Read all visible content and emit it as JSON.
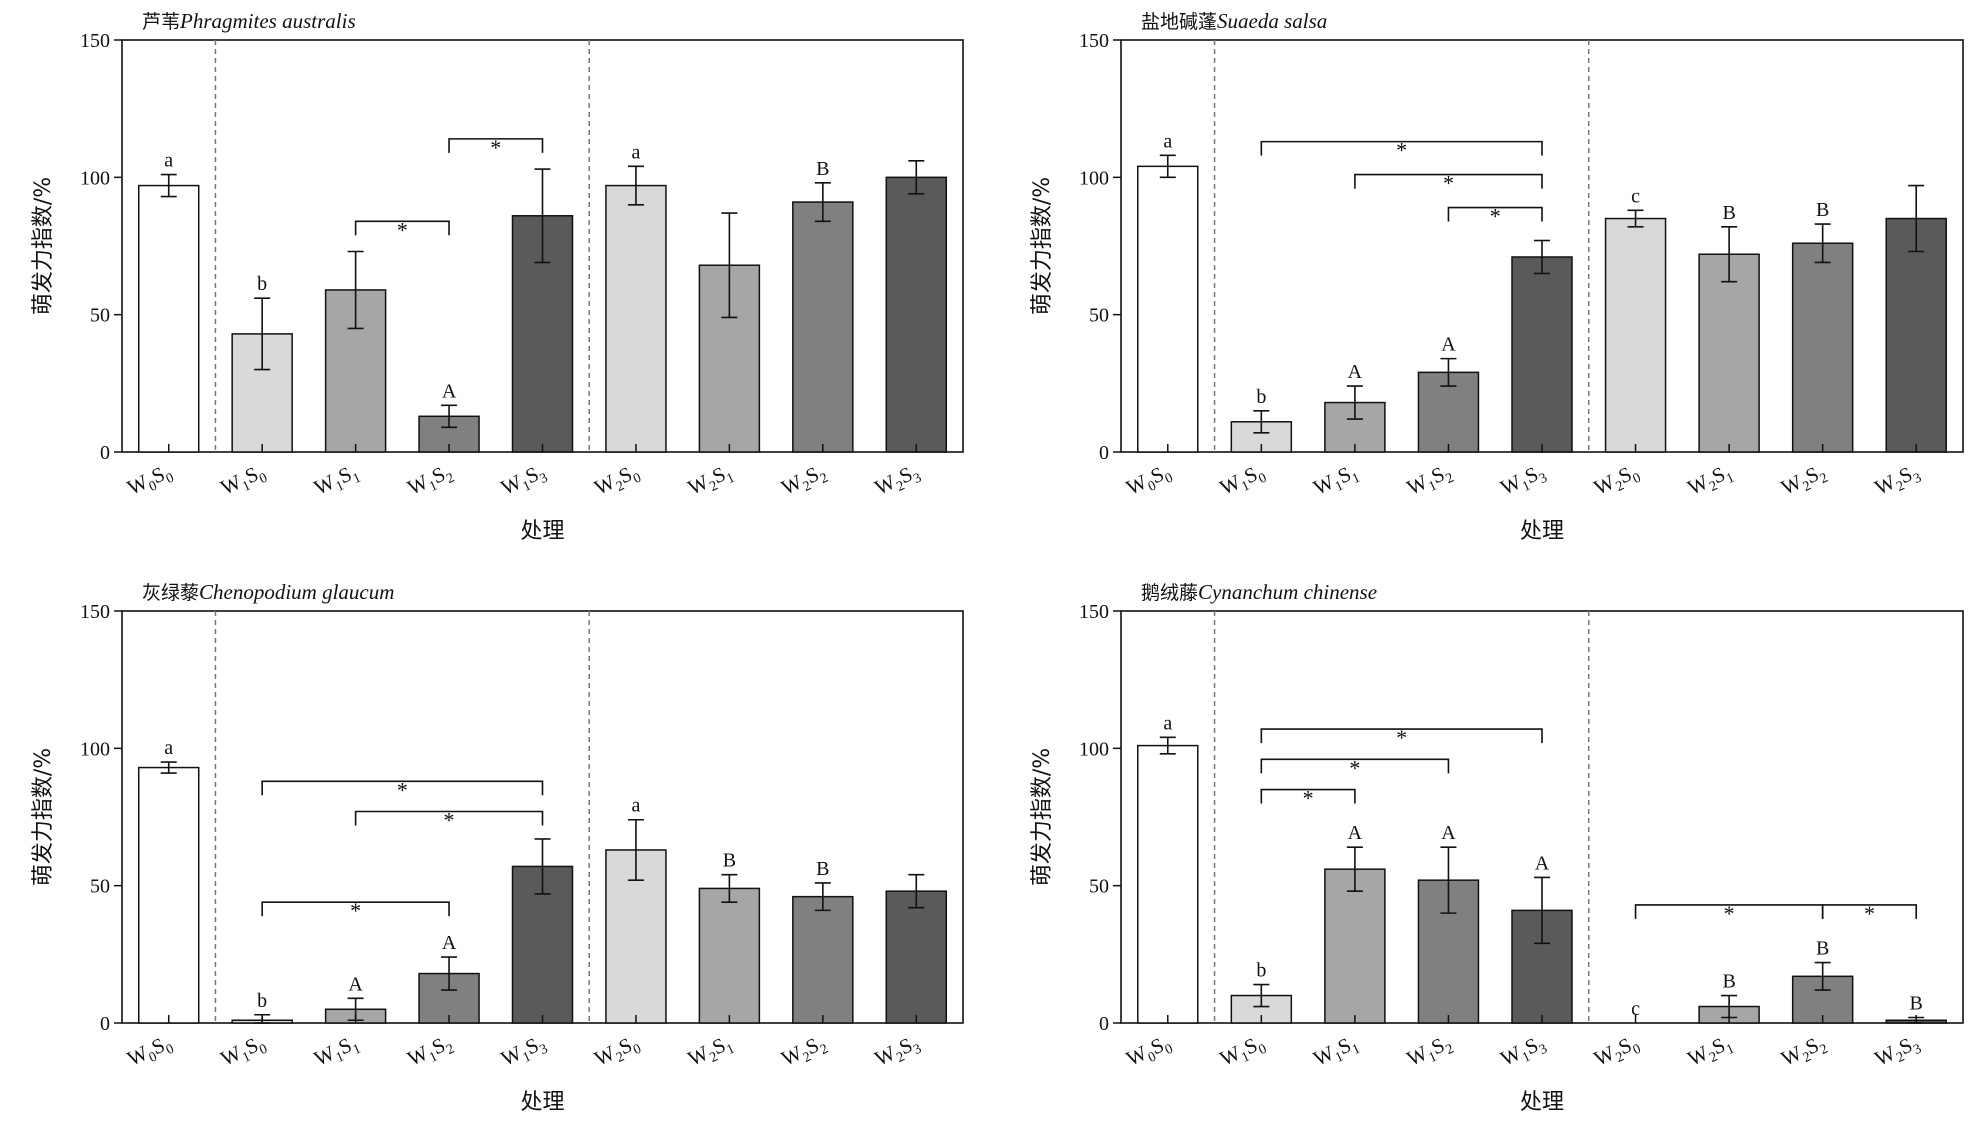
{
  "chart_data": [
    {
      "type": "bar",
      "title_cn": "芦苇",
      "title_latin": "Phragmites australis",
      "xlabel": "处理",
      "ylabel": "萌发力指数/%",
      "ylim": [
        0,
        150
      ],
      "yticks": [
        0,
        50,
        100,
        150
      ],
      "categories": [
        "W0S0",
        "W1S0",
        "W1S1",
        "W1S2",
        "W1S3",
        "W2S0",
        "W2S1",
        "W2S2",
        "W2S3"
      ],
      "values": [
        97,
        43,
        59,
        13,
        86,
        97,
        68,
        91,
        100
      ],
      "errors": [
        4,
        13,
        14,
        4,
        17,
        7,
        19,
        7,
        6
      ],
      "letters": [
        "a",
        "b",
        "",
        "A",
        "",
        "a",
        "",
        "B",
        ""
      ],
      "bar_colors": [
        "#ffffff",
        "#d9d9d9",
        "#a6a6a8",
        "#808080",
        "#5a5a5a",
        "#d9d9d9",
        "#a6a6a8",
        "#808080",
        "#5a5a5a"
      ],
      "group_dividers_after": [
        0,
        4
      ],
      "significance": [
        {
          "from": 2,
          "to": 3,
          "y": 84,
          "label": "*"
        },
        {
          "from": 3,
          "to": 4,
          "y": 114,
          "label": "*"
        }
      ]
    },
    {
      "type": "bar",
      "title_cn": "盐地碱蓬",
      "title_latin": "Suaeda salsa",
      "xlabel": "处理",
      "ylabel": "萌发力指数/%",
      "ylim": [
        0,
        150
      ],
      "yticks": [
        0,
        50,
        100,
        150
      ],
      "categories": [
        "W0S0",
        "W1S0",
        "W1S1",
        "W1S2",
        "W1S3",
        "W2S0",
        "W2S1",
        "W2S2",
        "W2S3"
      ],
      "values": [
        104,
        11,
        18,
        29,
        71,
        85,
        72,
        76,
        85
      ],
      "errors": [
        4,
        4,
        6,
        5,
        6,
        3,
        10,
        7,
        12
      ],
      "letters": [
        "a",
        "b",
        "A",
        "A",
        "",
        "c",
        "B",
        "B",
        ""
      ],
      "bar_colors": [
        "#ffffff",
        "#d9d9d9",
        "#a6a6a8",
        "#808080",
        "#5a5a5a",
        "#d9d9d9",
        "#a6a6a8",
        "#808080",
        "#5a5a5a"
      ],
      "group_dividers_after": [
        0,
        4
      ],
      "significance": [
        {
          "from": 1,
          "to": 4,
          "y": 113,
          "label": "*"
        },
        {
          "from": 2,
          "to": 4,
          "y": 101,
          "label": "*"
        },
        {
          "from": 3,
          "to": 4,
          "y": 89,
          "label": "*"
        }
      ]
    },
    {
      "type": "bar",
      "title_cn": "灰绿藜",
      "title_latin": "Chenopodium glaucum",
      "xlabel": "处理",
      "ylabel": "萌发力指数/%",
      "ylim": [
        0,
        150
      ],
      "yticks": [
        0,
        50,
        100,
        150
      ],
      "categories": [
        "W0S0",
        "W1S0",
        "W1S1",
        "W1S2",
        "W1S3",
        "W2S0",
        "W2S1",
        "W2S2",
        "W2S3"
      ],
      "values": [
        93,
        1,
        5,
        18,
        57,
        63,
        49,
        46,
        48
      ],
      "errors": [
        2,
        2,
        4,
        6,
        10,
        11,
        5,
        5,
        6
      ],
      "letters": [
        "a",
        "b",
        "A",
        "A",
        "",
        "a",
        "B",
        "B",
        ""
      ],
      "bar_colors": [
        "#ffffff",
        "#d9d9d9",
        "#a6a6a8",
        "#808080",
        "#5a5a5a",
        "#d9d9d9",
        "#a6a6a8",
        "#808080",
        "#5a5a5a"
      ],
      "group_dividers_after": [
        0,
        4
      ],
      "significance": [
        {
          "from": 1,
          "to": 4,
          "y": 88,
          "label": "*"
        },
        {
          "from": 2,
          "to": 4,
          "y": 77,
          "label": "*"
        },
        {
          "from": 1,
          "to": 3,
          "y": 44,
          "label": "*"
        }
      ]
    },
    {
      "type": "bar",
      "title_cn": "鹅绒藤",
      "title_latin": "Cynanchum chinense",
      "xlabel": "处理",
      "ylabel": "萌发力指数/%",
      "ylim": [
        0,
        150
      ],
      "yticks": [
        0,
        50,
        100,
        150
      ],
      "categories": [
        "W0S0",
        "W1S0",
        "W1S1",
        "W1S2",
        "W1S3",
        "W2S0",
        "W2S1",
        "W2S2",
        "W2S3"
      ],
      "values": [
        101,
        10,
        56,
        52,
        41,
        0,
        6,
        17,
        1
      ],
      "errors": [
        3,
        4,
        8,
        12,
        12,
        0,
        4,
        5,
        1
      ],
      "letters": [
        "a",
        "b",
        "A",
        "A",
        "A",
        "c",
        "B",
        "B",
        "B"
      ],
      "bar_colors": [
        "#ffffff",
        "#d9d9d9",
        "#a6a6a8",
        "#808080",
        "#5a5a5a",
        "#d9d9d9",
        "#a6a6a8",
        "#808080",
        "#5a5a5a"
      ],
      "group_dividers_after": [
        0,
        4
      ],
      "significance": [
        {
          "from": 1,
          "to": 4,
          "y": 107,
          "label": "*"
        },
        {
          "from": 1,
          "to": 3,
          "y": 96,
          "label": "*"
        },
        {
          "from": 1,
          "to": 2,
          "y": 85,
          "label": "*"
        },
        {
          "from": 5,
          "to": 7,
          "y": 43,
          "label": "*"
        },
        {
          "from": 7,
          "to": 8,
          "y": 43,
          "label": "*"
        }
      ]
    }
  ]
}
